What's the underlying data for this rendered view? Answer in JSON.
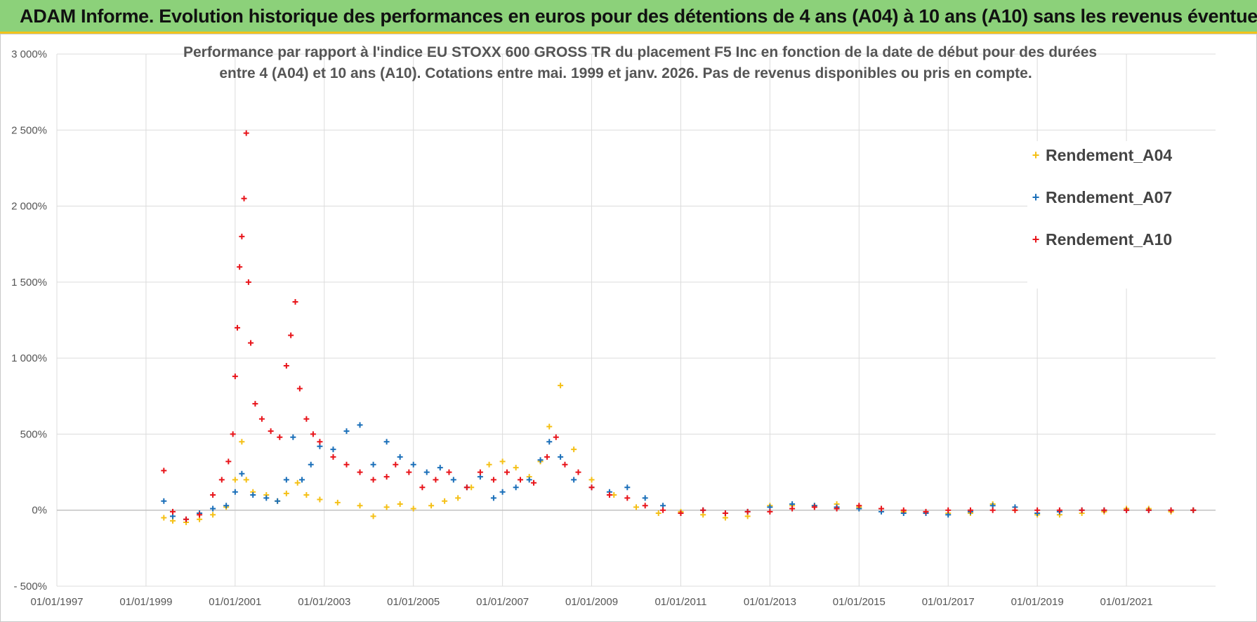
{
  "banner": {
    "title": "ADAM Informe. Evolution historique des performances en euros pour des détentions de 4 ans (A04) à 10 ans (A10) sans les revenus éventuels"
  },
  "chart_data": {
    "type": "scatter",
    "title_line1": "Performance par rapport à l'indice EU STOXX 600 GROSS TR  du placement F5 Inc en fonction de la date de début pour des durées",
    "title_line2": "entre 4 (A04) et 10 ans (A10).  Cotations entre mai. 1999 et janv. 2026.  Pas de revenus disponibles ou pris en compte.",
    "xlabel": "",
    "ylabel": "",
    "xlim": [
      1997.0,
      2023.0
    ],
    "ylim": [
      -500,
      3000
    ],
    "y_ticks": [
      -500,
      0,
      500,
      1000,
      1500,
      2000,
      2500,
      3000
    ],
    "y_tick_labels": [
      "- 500%",
      "0%",
      "500%",
      "1 000%",
      "1 500%",
      "2 000%",
      "2 500%",
      "3 000%"
    ],
    "x_ticks": [
      1997,
      1999,
      2001,
      2003,
      2005,
      2007,
      2009,
      2011,
      2013,
      2015,
      2017,
      2019,
      2021
    ],
    "x_tick_labels": [
      "01/01/1997",
      "01/01/1999",
      "01/01/2001",
      "01/01/2003",
      "01/01/2005",
      "01/01/2007",
      "01/01/2009",
      "01/01/2011",
      "01/01/2013",
      "01/01/2015",
      "01/01/2017",
      "01/01/2019",
      "01/01/2021"
    ],
    "marker": "+",
    "legend_position": "top-right",
    "series": [
      {
        "name": "Rendement_A04",
        "color": "#f5c016",
        "x": [
          1999.4,
          1999.6,
          1999.9,
          2000.2,
          2000.5,
          2000.8,
          2001.0,
          2001.15,
          2001.25,
          2001.4,
          2001.7,
          2001.95,
          2002.15,
          2002.4,
          2002.6,
          2002.9,
          2003.3,
          2003.8,
          2004.1,
          2004.4,
          2004.7,
          2005.0,
          2005.4,
          2005.7,
          2006.0,
          2006.3,
          2006.7,
          2007.0,
          2007.3,
          2007.6,
          2007.85,
          2008.05,
          2008.3,
          2008.6,
          2009.0,
          2009.5,
          2010.0,
          2010.5,
          2011.0,
          2011.5,
          2012.0,
          2012.5,
          2013.0,
          2013.5,
          2014.0,
          2014.5,
          2015.0,
          2015.5,
          2016.0,
          2016.5,
          2017.0,
          2017.5,
          2018.0,
          2018.5,
          2019.0,
          2019.5,
          2020.0,
          2020.5,
          2021.0,
          2021.5,
          2022.0,
          2022.5
        ],
        "y": [
          -50,
          -70,
          -80,
          -60,
          -30,
          20,
          200,
          450,
          200,
          120,
          100,
          60,
          110,
          180,
          100,
          70,
          50,
          30,
          -40,
          20,
          40,
          10,
          30,
          60,
          80,
          150,
          300,
          320,
          280,
          220,
          320,
          550,
          820,
          400,
          200,
          100,
          20,
          -20,
          -10,
          -30,
          -50,
          -40,
          30,
          30,
          30,
          40,
          20,
          10,
          -10,
          -20,
          -20,
          -20,
          40,
          0,
          -30,
          -30,
          -20,
          -10,
          10,
          10,
          -10,
          0
        ]
      },
      {
        "name": "Rendement_A07",
        "color": "#1a6fb9",
        "x": [
          1999.4,
          1999.6,
          1999.9,
          2000.2,
          2000.5,
          2000.8,
          2001.0,
          2001.15,
          2001.4,
          2001.7,
          2001.95,
          2002.15,
          2002.3,
          2002.5,
          2002.7,
          2002.9,
          2003.2,
          2003.5,
          2003.8,
          2004.1,
          2004.4,
          2004.7,
          2005.0,
          2005.3,
          2005.6,
          2005.9,
          2006.2,
          2006.5,
          2006.8,
          2007.0,
          2007.3,
          2007.6,
          2007.85,
          2008.05,
          2008.3,
          2008.6,
          2009.0,
          2009.4,
          2009.8,
          2010.2,
          2010.6,
          2011.0,
          2011.5,
          2012.0,
          2012.5,
          2013.0,
          2013.5,
          2014.0,
          2014.5,
          2015.0,
          2015.5,
          2016.0,
          2016.5,
          2017.0,
          2017.5,
          2018.0,
          2018.5,
          2019.0,
          2019.5,
          2020.0,
          2020.5,
          2021.0,
          2021.5,
          2022.0,
          2022.5
        ],
        "y": [
          60,
          -40,
          -60,
          -20,
          10,
          30,
          120,
          240,
          100,
          80,
          60,
          200,
          480,
          200,
          300,
          420,
          400,
          520,
          560,
          300,
          450,
          350,
          300,
          250,
          280,
          200,
          150,
          220,
          80,
          120,
          150,
          200,
          330,
          450,
          350,
          200,
          150,
          120,
          150,
          80,
          30,
          -20,
          0,
          -20,
          -10,
          20,
          40,
          30,
          20,
          10,
          -10,
          -20,
          -20,
          -30,
          -10,
          30,
          20,
          -20,
          -10,
          0,
          0,
          0,
          0,
          0,
          0
        ]
      },
      {
        "name": "Rendement_A10",
        "color": "#e8141a",
        "x": [
          1999.4,
          1999.6,
          1999.9,
          2000.2,
          2000.5,
          2000.7,
          2000.85,
          2000.95,
          2001.0,
          2001.05,
          2001.1,
          2001.15,
          2001.2,
          2001.25,
          2001.3,
          2001.35,
          2001.45,
          2001.6,
          2001.8,
          2002.0,
          2002.15,
          2002.25,
          2002.35,
          2002.45,
          2002.6,
          2002.75,
          2002.9,
          2003.2,
          2003.5,
          2003.8,
          2004.1,
          2004.4,
          2004.6,
          2004.9,
          2005.2,
          2005.5,
          2005.8,
          2006.2,
          2006.5,
          2006.8,
          2007.1,
          2007.4,
          2007.7,
          2008.0,
          2008.2,
          2008.4,
          2008.7,
          2009.0,
          2009.4,
          2009.8,
          2010.2,
          2010.6,
          2011.0,
          2011.5,
          2012.0,
          2012.5,
          2013.0,
          2013.5,
          2014.0,
          2014.5,
          2015.0,
          2015.5,
          2016.0,
          2016.5,
          2017.0,
          2017.5,
          2018.0,
          2018.5,
          2019.0,
          2019.5,
          2020.0,
          2020.5,
          2021.0,
          2021.5,
          2022.0,
          2022.5
        ],
        "y": [
          260,
          -10,
          -60,
          -30,
          100,
          200,
          320,
          500,
          880,
          1200,
          1600,
          1800,
          2050,
          2480,
          1500,
          1100,
          700,
          600,
          520,
          480,
          950,
          1150,
          1370,
          800,
          600,
          500,
          450,
          350,
          300,
          250,
          200,
          220,
          300,
          250,
          150,
          200,
          250,
          150,
          250,
          200,
          250,
          200,
          180,
          350,
          480,
          300,
          250,
          150,
          100,
          80,
          30,
          0,
          -20,
          0,
          -20,
          -10,
          -10,
          10,
          20,
          10,
          30,
          10,
          0,
          -10,
          0,
          0,
          0,
          0,
          0,
          0,
          0,
          0,
          0,
          0,
          0,
          0
        ]
      }
    ]
  }
}
